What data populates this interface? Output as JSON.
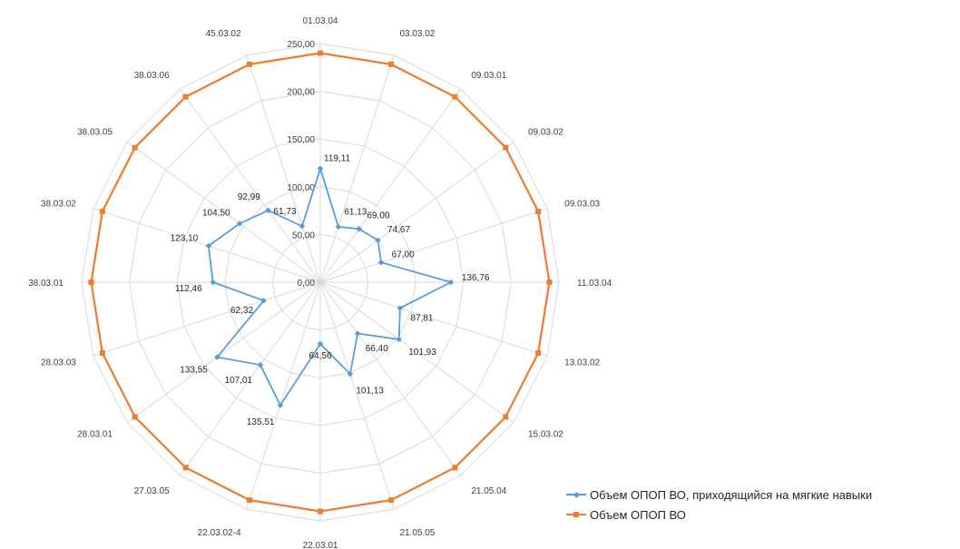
{
  "chart_data": {
    "type": "radar",
    "title": "",
    "categories": [
      "01.03.04",
      "03.03.02",
      "09.03.01",
      "09.03.02",
      "09.03.03",
      "11.03.04",
      "13.03.02",
      "15.03.02",
      "21.05.04",
      "21.05.05",
      "22.03.01",
      "22.03.02-4",
      "27.03.05",
      "28.03.01",
      "28.03.03",
      "38.03.01",
      "38.03.02",
      "38.03.05",
      "38.03.06",
      "45.03.02"
    ],
    "rlim": [
      0,
      250
    ],
    "ticks": [
      0,
      50,
      100,
      150,
      200,
      250
    ],
    "tick_labels": [
      "0,00",
      "50,00",
      "100,00",
      "150,00",
      "200,00",
      "250,00"
    ],
    "grid": true,
    "legend_position": "bottom-right",
    "series": [
      {
        "name": "Объем ОПОП ВО, приходящийся на мягкие навыки",
        "color": "#5b9bd5",
        "marker": "diamond",
        "values": [
          119.11,
          61.13,
          69.0,
          74.67,
          67.0,
          136.76,
          87.81,
          101.93,
          66.4,
          101.13,
          64.56,
          135.51,
          107.01,
          133.55,
          62.32,
          112.46,
          123.1,
          104.5,
          92.99,
          61.73
        ],
        "labels": [
          "119,11",
          "61,13",
          "69,00",
          "74,67",
          "67,00",
          "136,76",
          "87,81",
          "101,93",
          "66,40",
          "101,13",
          "64,56",
          "135,51",
          "107,01",
          "133,55",
          "62,32",
          "112,46",
          "123,10",
          "104,50",
          "92,99",
          "61,73"
        ]
      },
      {
        "name": "Объем ОПОП ВО",
        "color": "#ed7d31",
        "marker": "square",
        "values": [
          240,
          240,
          240,
          240,
          240,
          240,
          240,
          240,
          240,
          240,
          240,
          240,
          240,
          240,
          240,
          240,
          240,
          240,
          240,
          240
        ],
        "labels": []
      }
    ]
  }
}
